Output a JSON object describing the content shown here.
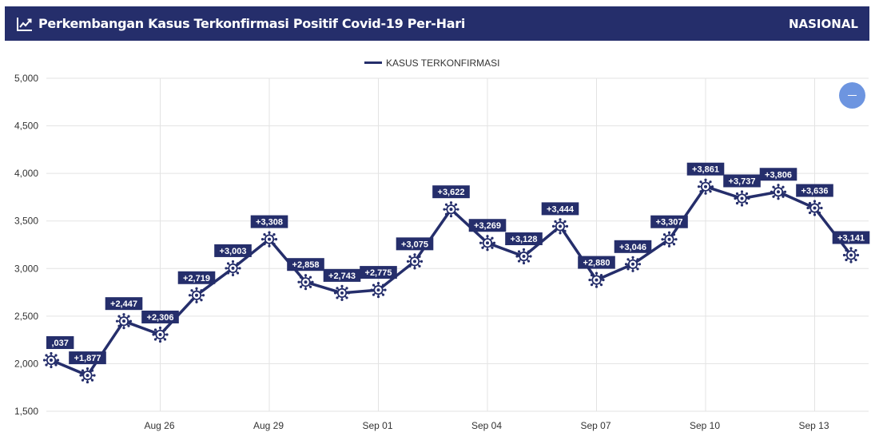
{
  "header": {
    "title": "Perkembangan Kasus Terkonfirmasi Positif Covid-19 Per-Hari",
    "scope": "NASIONAL",
    "icon": "line-chart-icon"
  },
  "controls": {
    "collapse_icon": "minus-icon"
  },
  "colors": {
    "header_bg": "#252e6b",
    "series": "#252e6b",
    "button": "#6d95e0",
    "grid": "#e3e3e3"
  },
  "chart_data": {
    "type": "line",
    "legend_position": "top-center",
    "grid": true,
    "ylim": [
      1500,
      5000
    ],
    "yticks": [
      1500,
      2000,
      2500,
      3000,
      3500,
      4000,
      4500,
      5000
    ],
    "ytick_labels": [
      "1,500",
      "2,000",
      "2,500",
      "3,000",
      "3,500",
      "4,000",
      "4,500",
      "5,000"
    ],
    "x": [
      "Aug 23",
      "Aug 24",
      "Aug 25",
      "Aug 26",
      "Aug 27",
      "Aug 28",
      "Aug 29",
      "Aug 30",
      "Aug 31",
      "Sep 01",
      "Sep 02",
      "Sep 03",
      "Sep 04",
      "Sep 05",
      "Sep 06",
      "Sep 07",
      "Sep 08",
      "Sep 09",
      "Sep 10",
      "Sep 11",
      "Sep 12",
      "Sep 13",
      "Sep 14"
    ],
    "xticks": [
      "Aug 26",
      "Aug 29",
      "Sep 01",
      "Sep 04",
      "Sep 07",
      "Sep 10",
      "Sep 13"
    ],
    "series": [
      {
        "name": "KASUS TERKONFIRMASI",
        "values": [
          2037,
          1877,
          2447,
          2306,
          2719,
          3003,
          3308,
          2858,
          2743,
          2775,
          3075,
          3622,
          3269,
          3128,
          3444,
          2880,
          3046,
          3307,
          3861,
          3737,
          3806,
          3636,
          3141
        ],
        "labels": [
          ",037",
          "+1,877",
          "+2,447",
          "+2,306",
          "+2,719",
          "+3,003",
          "+3,308",
          "+2,858",
          "+2,743",
          "+2,775",
          "+3,075",
          "+3,622",
          "+3,269",
          "+3,128",
          "+3,444",
          "+2,880",
          "+3,046",
          "+3,307",
          "+3,861",
          "+3,737",
          "+3,806",
          "+3,636",
          "+3,141"
        ],
        "marker": "virus-icon"
      }
    ]
  }
}
